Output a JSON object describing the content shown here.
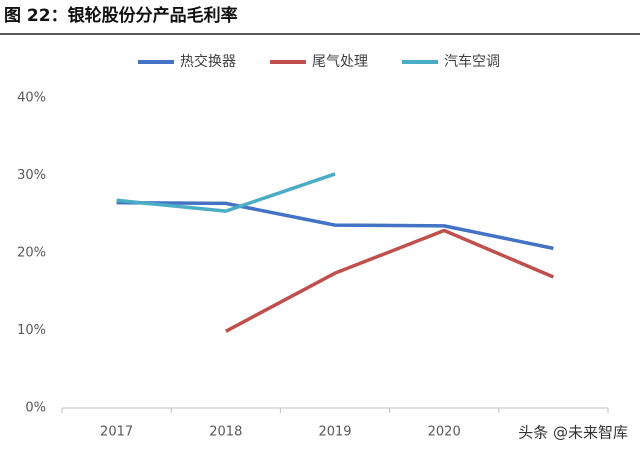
{
  "chart_data": {
    "type": "line",
    "title": "图 22：银轮股份分产品毛利率",
    "categories": [
      "2017",
      "2018",
      "2019",
      "2020",
      null
    ],
    "series": [
      {
        "name": "热交换器",
        "color": "#4472c4",
        "values": [
          26.5,
          26.4,
          23.6,
          23.5,
          20.6
        ]
      },
      {
        "name": "尾气处理",
        "color": "#c0504d",
        "values": [
          null,
          9.9,
          17.4,
          22.9,
          16.9
        ]
      },
      {
        "name": "汽车空调",
        "color": "#4bacc6",
        "values": [
          26.8,
          25.4,
          30.2,
          null,
          null
        ]
      }
    ],
    "ylim": [
      0,
      40
    ],
    "yticks": [
      {
        "value": 0,
        "label": "0%"
      },
      {
        "value": 10,
        "label": "10%"
      },
      {
        "value": 20,
        "label": "20%"
      },
      {
        "value": 30,
        "label": "30%"
      },
      {
        "value": 40,
        "label": "40%"
      }
    ],
    "grid": false,
    "legend": "top",
    "watermark": "头条 @未来智库"
  }
}
